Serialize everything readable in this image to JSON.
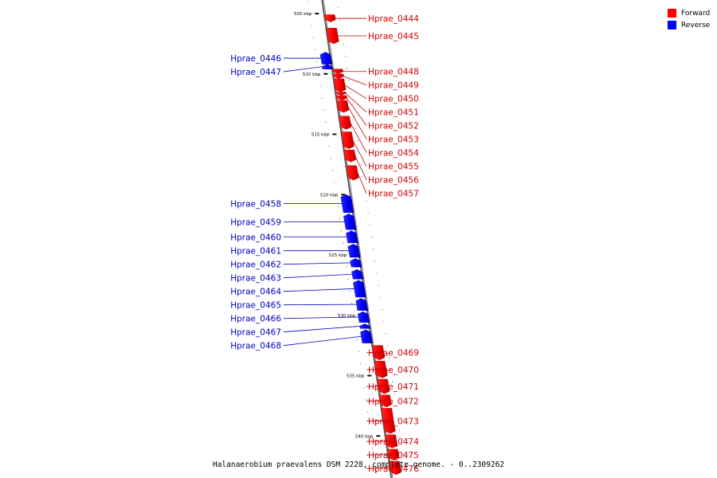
{
  "legend": [
    {
      "label": "Forward",
      "color": "#ff0000"
    },
    {
      "label": "Reverse",
      "color": "#0000ff"
    }
  ],
  "caption": "Halanaerobium praevalens DSM 2228, complete genome. - 0..2309262",
  "axis": {
    "ticks": [
      {
        "kbp": 505,
        "label": "505 kbp"
      },
      {
        "kbp": 510,
        "label": "510 kbp"
      },
      {
        "kbp": 515,
        "label": "515 kbp"
      },
      {
        "kbp": 520,
        "label": "520 kbp"
      },
      {
        "kbp": 525,
        "label": "525 kbp"
      },
      {
        "kbp": 530,
        "label": "530 kbp"
      },
      {
        "kbp": 535,
        "label": "535 kbp"
      },
      {
        "kbp": 540,
        "label": "540 kbp"
      }
    ]
  },
  "genes": [
    {
      "id": "Hprae_0444",
      "strand": "forward",
      "start": 505.1,
      "end": 505.7
    },
    {
      "id": "Hprae_0445",
      "strand": "forward",
      "start": 506.2,
      "end": 507.5
    },
    {
      "id": "Hprae_0446",
      "strand": "reverse",
      "start": 508.2,
      "end": 509.2
    },
    {
      "id": "Hprae_0447",
      "strand": "reverse",
      "start": 509.2,
      "end": 509.6
    },
    {
      "id": "Hprae_0448",
      "strand": "forward",
      "start": 509.6,
      "end": 510.0
    },
    {
      "id": "Hprae_0449",
      "strand": "forward",
      "start": 510.0,
      "end": 510.4
    },
    {
      "id": "Hprae_0450",
      "strand": "forward",
      "start": 510.4,
      "end": 511.5
    },
    {
      "id": "Hprae_0451",
      "strand": "forward",
      "start": 511.5,
      "end": 511.8
    },
    {
      "id": "Hprae_0452",
      "strand": "forward",
      "start": 511.8,
      "end": 512.2
    },
    {
      "id": "Hprae_0453",
      "strand": "forward",
      "start": 512.2,
      "end": 513.2
    },
    {
      "id": "Hprae_0454",
      "strand": "forward",
      "start": 513.5,
      "end": 514.6
    },
    {
      "id": "Hprae_0455",
      "strand": "forward",
      "start": 514.8,
      "end": 516.2
    },
    {
      "id": "Hprae_0456",
      "strand": "forward",
      "start": 516.3,
      "end": 517.3
    },
    {
      "id": "Hprae_0457",
      "strand": "forward",
      "start": 517.6,
      "end": 518.8
    },
    {
      "id": "Hprae_0458",
      "strand": "reverse",
      "start": 520.0,
      "end": 521.5
    },
    {
      "id": "Hprae_0459",
      "strand": "reverse",
      "start": 521.6,
      "end": 522.9
    },
    {
      "id": "Hprae_0460",
      "strand": "reverse",
      "start": 523.0,
      "end": 524.0
    },
    {
      "id": "Hprae_0461",
      "strand": "reverse",
      "start": 524.1,
      "end": 525.2
    },
    {
      "id": "Hprae_0462",
      "strand": "reverse",
      "start": 525.3,
      "end": 526.0
    },
    {
      "id": "Hprae_0463",
      "strand": "reverse",
      "start": 526.2,
      "end": 527.0
    },
    {
      "id": "Hprae_0464",
      "strand": "reverse",
      "start": 527.1,
      "end": 528.5
    },
    {
      "id": "Hprae_0465",
      "strand": "reverse",
      "start": 528.6,
      "end": 529.6
    },
    {
      "id": "Hprae_0466",
      "strand": "reverse",
      "start": 529.7,
      "end": 530.6
    },
    {
      "id": "Hprae_0467",
      "strand": "reverse",
      "start": 530.7,
      "end": 531.1
    },
    {
      "id": "Hprae_0468",
      "strand": "reverse",
      "start": 531.2,
      "end": 532.3
    },
    {
      "id": "Hprae_0469",
      "strand": "forward",
      "start": 532.5,
      "end": 533.7
    },
    {
      "id": "Hprae_0470",
      "strand": "forward",
      "start": 533.8,
      "end": 535.2
    },
    {
      "id": "Hprae_0471",
      "strand": "forward",
      "start": 535.3,
      "end": 536.5
    },
    {
      "id": "Hprae_0472",
      "strand": "forward",
      "start": 536.6,
      "end": 537.6
    },
    {
      "id": "Hprae_0473",
      "strand": "forward",
      "start": 537.7,
      "end": 539.8
    },
    {
      "id": "Hprae_0474",
      "strand": "forward",
      "start": 539.9,
      "end": 541.0
    },
    {
      "id": "Hprae_0475",
      "strand": "forward",
      "start": 541.1,
      "end": 542.0
    },
    {
      "id": "Hprae_0476",
      "strand": "forward",
      "start": 542.1,
      "end": 543.2
    }
  ]
}
